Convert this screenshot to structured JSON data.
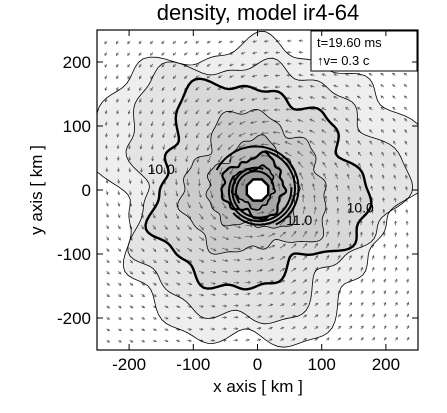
{
  "chart_data": {
    "type": "heatmap",
    "title": "density, model ir4-64",
    "xlabel": "x axis [ km ]",
    "ylabel": "y axis [ km ]",
    "xlim": [
      -250,
      250
    ],
    "ylim": [
      -250,
      250
    ],
    "x_ticks": [
      -200,
      -100,
      0,
      100,
      200
    ],
    "y_ticks": [
      200,
      100,
      0,
      -100,
      -200
    ],
    "x_tick_labels": [
      "-200",
      "-100",
      "0",
      "100",
      "200"
    ],
    "y_tick_labels": [
      "200",
      "100",
      "0",
      "-100",
      "-200"
    ],
    "annotation_lines": [
      "t=19.60 ms",
      "↑v=  0.3 c"
    ],
    "contour_labels": [
      {
        "text": "10.0",
        "x": -150,
        "y": 25
      },
      {
        "text": "10.0",
        "x": 160,
        "y": -35
      },
      {
        "text": "11.0",
        "x": 65,
        "y": -55
      }
    ],
    "contour_levels": [
      9.0,
      9.5,
      10.0,
      10.5,
      11.0,
      11.5
    ],
    "highlighted_level": 10.0,
    "excised_center_radius": 18,
    "colors": {
      "background": "#ffffff",
      "contour": "#000000",
      "vector": "#555555"
    }
  }
}
